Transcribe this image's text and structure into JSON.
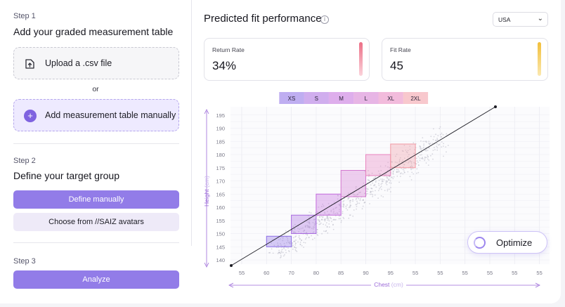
{
  "steps": [
    {
      "label": "Step 1",
      "title": "Add your graded measurement table"
    },
    {
      "label": "Step 2",
      "title": "Define your target group"
    },
    {
      "label": "Step 3"
    }
  ],
  "upload": {
    "label": "Upload a .csv file",
    "icon": "upload-file-icon"
  },
  "or_text": "or",
  "manual": {
    "label": "Add measurement table manually",
    "icon": "plus-icon"
  },
  "define_button": "Define manually",
  "avatars_button": "Choose from //SAIZ avatars",
  "analyze_button": "Analyze",
  "header": {
    "title": "Predicted fit performance",
    "info_icon": "i"
  },
  "country_select": {
    "value": "USA",
    "icon": "chevron-down-icon"
  },
  "cards": [
    {
      "label": "Return Rate",
      "value": "34%",
      "accent": "#ec6f86"
    },
    {
      "label": "Fit Rate",
      "value": "45",
      "accent": "#f4c542"
    }
  ],
  "optimize_button": "Optimize",
  "colors": {
    "primary": "#927ce8",
    "sizes": [
      "#8b6ce6",
      "#a96ce0",
      "#c26bdc",
      "#d479d0",
      "#e884bf",
      "#f29aa4"
    ]
  },
  "chart_data": {
    "type": "scatter",
    "xlabel": "Chest",
    "xunit": "(cm)",
    "ylabel": "Height",
    "yunit": "(cm)",
    "x_ticks": [
      "55",
      "60",
      "70",
      "80",
      "85",
      "90",
      "95",
      "55",
      "55",
      "55",
      "55",
      "55",
      "55",
      "55"
    ],
    "y_ticks": [
      "140",
      "145",
      "150",
      "155",
      "160",
      "165",
      "170",
      "175",
      "180",
      "185",
      "190",
      "195"
    ],
    "ylim": [
      140,
      197.5
    ],
    "sizes": [
      {
        "name": "XS",
        "x_tick_range": [
          1,
          2
        ],
        "height_range": [
          145,
          149
        ]
      },
      {
        "name": "S",
        "x_tick_range": [
          2,
          3
        ],
        "height_range": [
          150,
          157
        ]
      },
      {
        "name": "M",
        "x_tick_range": [
          3,
          4
        ],
        "height_range": [
          157,
          165
        ]
      },
      {
        "name": "L",
        "x_tick_range": [
          4,
          5
        ],
        "height_range": [
          164,
          174
        ]
      },
      {
        "name": "XL",
        "x_tick_range": [
          5,
          6
        ],
        "height_range": [
          172,
          180
        ]
      },
      {
        "name": "2XL",
        "x_tick_range": [
          6,
          7
        ],
        "height_range": [
          175,
          184
        ]
      }
    ],
    "fit_line": {
      "from": [
        0,
        140
      ],
      "to": [
        10.5,
        194
      ]
    },
    "scatter": "dense cloud of individual body measurements following the fit line",
    "grid": true
  }
}
